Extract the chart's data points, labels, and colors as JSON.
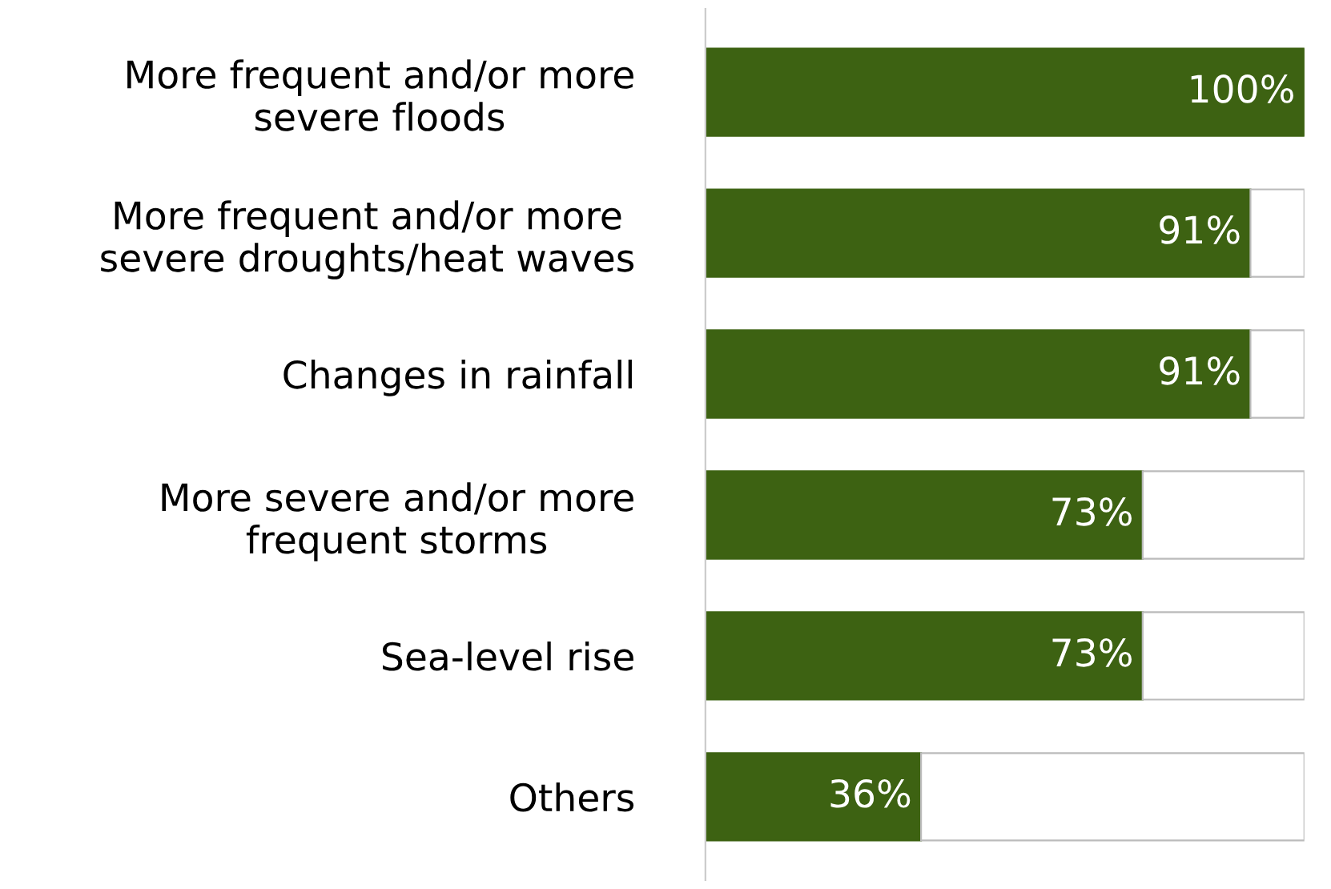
{
  "chart_data": {
    "type": "bar",
    "orientation": "horizontal",
    "stacked": true,
    "categories": [
      "More frequent and/or more\nsevere floods",
      "More frequent and/or more\nsevere droughts/heat waves",
      "Changes in rainfall",
      "More severe and/or more\nfrequent storms",
      "Sea-level rise",
      "Others"
    ],
    "series": [
      {
        "color": "#3d6212",
        "values": [
          100,
          91,
          91,
          73,
          73,
          36
        ],
        "value_labels": [
          "100%",
          "91%",
          "91%",
          "73%",
          "73%",
          "36%"
        ]
      },
      {
        "color": "#ffffff",
        "values": [
          0,
          9,
          9,
          27,
          27,
          64
        ]
      }
    ],
    "xlim": [
      0,
      100
    ],
    "tick_labels": "y",
    "grid": false,
    "legend": false
  }
}
